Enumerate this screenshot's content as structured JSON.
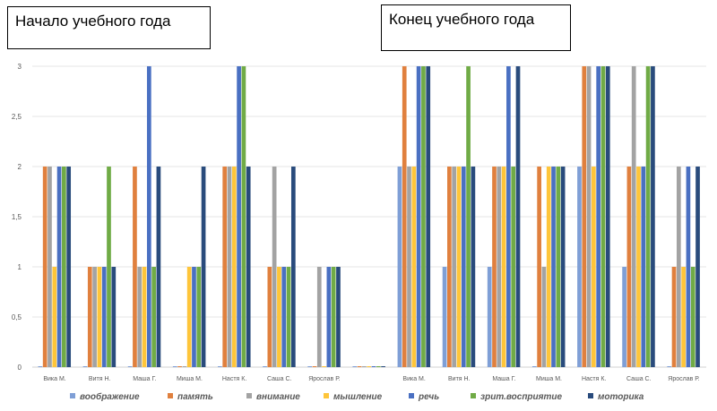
{
  "titles": {
    "left": "Начало учебного года",
    "right": "Конец учебного года"
  },
  "chart_data": {
    "type": "bar",
    "ylim": [
      0,
      3
    ],
    "y_ticks": [
      "0",
      "0,5",
      "1",
      "1,5",
      "2",
      "2,5",
      "3"
    ],
    "grid": true,
    "legend_position": "bottom",
    "categories": [
      "Вика М.",
      "Витя Н.",
      "Маша Г.",
      "Миша М.",
      "Настя К.",
      "Саша С.",
      "Ярослав Р.",
      "",
      "Вика М.",
      "Витя Н.",
      "Маша Г.",
      "Миша М.",
      "Настя К.",
      "Саша С.",
      "Ярослав Р."
    ],
    "series": [
      {
        "name": "воображение",
        "color": "#7f9fd6",
        "values": [
          0,
          0,
          0,
          0,
          0,
          0,
          0,
          0,
          2,
          1,
          1,
          0,
          2,
          1,
          0
        ]
      },
      {
        "name": "память",
        "color": "#e0803e",
        "values": [
          2,
          1,
          2,
          0,
          2,
          1,
          0,
          0,
          3,
          2,
          2,
          2,
          3,
          2,
          1
        ]
      },
      {
        "name": "внимание",
        "color": "#a3a3a3",
        "values": [
          2,
          1,
          1,
          0,
          2,
          2,
          1,
          0,
          2,
          2,
          2,
          1,
          3,
          3,
          2
        ]
      },
      {
        "name": "мышление",
        "color": "#fec53a",
        "values": [
          1,
          1,
          1,
          1,
          2,
          1,
          0,
          0,
          2,
          2,
          2,
          2,
          2,
          2,
          1
        ]
      },
      {
        "name": "речь",
        "color": "#4a70c2",
        "values": [
          2,
          1,
          3,
          1,
          3,
          1,
          1,
          0,
          3,
          2,
          3,
          2,
          3,
          2,
          2
        ]
      },
      {
        "name": "зрит.восприятие",
        "color": "#70ab46",
        "values": [
          2,
          2,
          1,
          1,
          3,
          1,
          1,
          0,
          3,
          3,
          2,
          2,
          3,
          3,
          1
        ]
      },
      {
        "name": "моторика",
        "color": "#294b7c",
        "values": [
          2,
          1,
          2,
          2,
          2,
          2,
          1,
          0,
          3,
          2,
          3,
          2,
          3,
          3,
          2
        ]
      }
    ]
  }
}
